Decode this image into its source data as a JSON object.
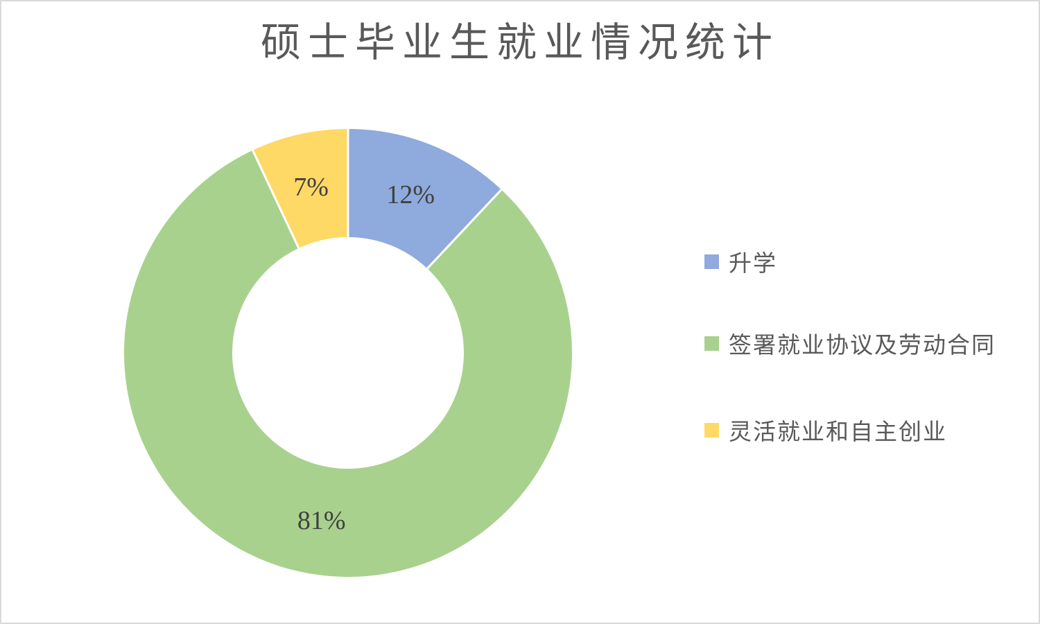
{
  "frame": {
    "background_color": "#ffffff",
    "border_color": "#d9d9d9"
  },
  "chart_data": {
    "type": "pie",
    "subtype": "donut",
    "title": "硕士毕业生就业情况统计",
    "title_color": "#595959",
    "start_angle_deg": 0,
    "direction": "clockwise",
    "hole_ratio": 0.51,
    "separator_color": "#ffffff",
    "data_label_color": "#404040",
    "legend_position": "right",
    "slices": [
      {
        "label": "升学",
        "value": 12,
        "display": "12%",
        "color": "#8FAADC"
      },
      {
        "label": "签署就业协议及劳动合同",
        "value": 81,
        "display": "81%",
        "color": "#A9D18E"
      },
      {
        "label": "灵活就业和自主创业",
        "value": 7,
        "display": "7%",
        "color": "#FFD966"
      }
    ]
  }
}
